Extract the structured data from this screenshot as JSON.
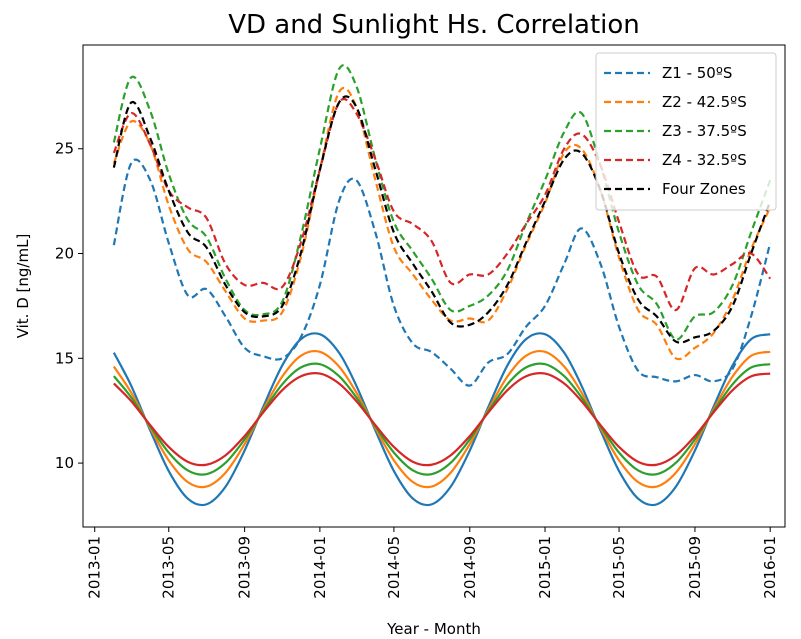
{
  "chart_data": {
    "type": "line",
    "title": "VD and Sunlight Hs. Correlation",
    "x_label": "Year - Month",
    "y_label": "Vit. D [ng/mL]",
    "x": [
      "2013-02",
      "2013-03",
      "2013-04",
      "2013-05",
      "2013-06",
      "2013-07",
      "2013-08",
      "2013-09",
      "2013-10",
      "2013-11",
      "2013-12",
      "2014-01",
      "2014-02",
      "2014-03",
      "2014-04",
      "2014-05",
      "2014-06",
      "2014-07",
      "2014-08",
      "2014-09",
      "2014-10",
      "2014-11",
      "2014-12",
      "2015-01",
      "2015-02",
      "2015-03",
      "2015-04",
      "2015-05",
      "2015-06",
      "2015-07",
      "2015-08",
      "2015-09",
      "2015-10",
      "2015-11",
      "2015-12",
      "2016-01"
    ],
    "xlim": [
      "2012-12-13",
      "2016-01-25"
    ],
    "xticks": [
      "2013-01",
      "2013-05",
      "2013-09",
      "2014-01",
      "2014-05",
      "2014-09",
      "2015-01",
      "2015-05",
      "2015-09",
      "2016-01"
    ],
    "ylim": [
      6.95,
      29.95
    ],
    "yticks": [
      10,
      15,
      20,
      25
    ],
    "legend": "upper right",
    "series": [
      {
        "name": "Z1 - 50ºS",
        "color": "#1f77b4",
        "linestyle": "dashed",
        "values": [
          20.4,
          24.3,
          23.5,
          20.5,
          18,
          18.3,
          17,
          15.5,
          15.1,
          15,
          16,
          18.5,
          22.5,
          23.5,
          21,
          17.5,
          15.7,
          15.3,
          14.5,
          13.7,
          14.8,
          15.2,
          16.5,
          17.5,
          19.5,
          21.2,
          19.5,
          16.5,
          14.4,
          14.1,
          13.9,
          14.2,
          13.9,
          14.5,
          17,
          20.5
        ]
      },
      {
        "name": "Z2 - 42.5ºS",
        "color": "#ff7f0e",
        "linestyle": "dashed",
        "values": [
          24.3,
          26.3,
          25.2,
          22.3,
          20.2,
          19.6,
          18.2,
          16.9,
          16.8,
          17.2,
          19.8,
          24,
          27.7,
          27,
          23.5,
          20.3,
          19,
          17.8,
          16.8,
          16.9,
          16.8,
          18.3,
          20.4,
          22.4,
          24.8,
          25,
          23,
          19.8,
          17.3,
          16.6,
          15,
          15.5,
          16.2,
          17.8,
          20.2,
          22.2
        ]
      },
      {
        "name": "Z3 - 37.5ºS",
        "color": "#2ca02c",
        "linestyle": "dashed",
        "values": [
          25.3,
          28.4,
          26.8,
          23.8,
          21.6,
          20.8,
          18.8,
          17.3,
          17.1,
          17.7,
          20.8,
          25,
          28.8,
          28,
          24.5,
          21.5,
          20.1,
          18.8,
          17.3,
          17.5,
          18,
          19.2,
          21.4,
          23.5,
          25.8,
          26.7,
          24.2,
          21,
          18.5,
          17.6,
          15.9,
          17,
          17.2,
          18.5,
          21,
          23.5
        ]
      },
      {
        "name": "Z4 - 32.5ºS",
        "color": "#d62728",
        "linestyle": "dashed",
        "values": [
          24.8,
          26.7,
          25.2,
          23,
          22.2,
          21.7,
          19.5,
          18.5,
          18.6,
          18.4,
          20.5,
          24,
          27.2,
          26.7,
          24.5,
          22,
          21.4,
          20.6,
          18.6,
          19,
          19,
          20,
          21.4,
          22.8,
          25,
          25.7,
          24.2,
          21.5,
          19,
          18.9,
          17.3,
          19.3,
          19,
          19.5,
          20,
          18.8
        ]
      },
      {
        "name": "Four Zones",
        "color": "#000000",
        "linestyle": "dashed",
        "values": [
          24.1,
          27.2,
          25.5,
          23,
          21,
          20.3,
          18.5,
          17.2,
          17,
          17.5,
          20,
          24,
          27.2,
          27,
          24,
          21,
          19.5,
          18.2,
          16.7,
          16.6,
          17.2,
          18.5,
          20.5,
          22.5,
          24.5,
          24.8,
          23,
          20,
          17.8,
          17,
          15.8,
          16,
          16.3,
          17.5,
          20,
          22.5
        ]
      },
      {
        "color": "#1f77b4",
        "linestyle": "solid",
        "values": [
          15.27,
          13.7,
          11.56,
          9.62,
          8.3,
          8.03,
          8.87,
          10.6,
          12.67,
          14.66,
          15.91,
          16.15,
          15.27,
          13.7,
          11.56,
          9.62,
          8.3,
          8.03,
          8.87,
          10.6,
          12.67,
          14.66,
          15.91,
          16.15,
          15.27,
          13.7,
          11.56,
          9.62,
          8.3,
          8.03,
          8.87,
          10.6,
          12.67,
          14.66,
          15.91,
          16.15
        ]
      },
      {
        "color": "#ff7f0e",
        "linestyle": "solid",
        "values": [
          14.61,
          13.37,
          11.67,
          10.13,
          9.09,
          8.88,
          9.54,
          10.91,
          12.55,
          14.13,
          15.12,
          15.31,
          14.61,
          13.37,
          11.67,
          10.13,
          9.09,
          8.88,
          9.54,
          10.91,
          12.55,
          14.13,
          15.12,
          15.31,
          14.61,
          13.37,
          11.67,
          10.13,
          9.09,
          8.88,
          9.54,
          10.91,
          12.55,
          14.13,
          15.12,
          15.31
        ]
      },
      {
        "color": "#2ca02c",
        "linestyle": "solid",
        "values": [
          14.15,
          13.14,
          11.75,
          10.5,
          9.65,
          9.47,
          10.01,
          11.13,
          12.47,
          13.76,
          14.56,
          14.72,
          14.15,
          13.14,
          11.75,
          10.5,
          9.65,
          9.47,
          10.01,
          11.13,
          12.47,
          13.76,
          14.56,
          14.72,
          14.15,
          13.14,
          11.75,
          10.5,
          9.65,
          9.47,
          10.01,
          11.13,
          12.47,
          13.76,
          14.56,
          14.72
        ]
      },
      {
        "color": "#d62728",
        "linestyle": "solid",
        "values": [
          13.8,
          12.96,
          11.81,
          10.77,
          10.06,
          9.92,
          10.37,
          11.29,
          12.41,
          13.48,
          14.14,
          14.27,
          13.8,
          12.96,
          11.81,
          10.77,
          10.06,
          9.92,
          10.37,
          11.29,
          12.41,
          13.48,
          14.14,
          14.27,
          13.8,
          12.96,
          11.81,
          10.77,
          10.06,
          9.92,
          10.37,
          11.29,
          12.41,
          13.48,
          14.14,
          14.27
        ]
      }
    ]
  }
}
